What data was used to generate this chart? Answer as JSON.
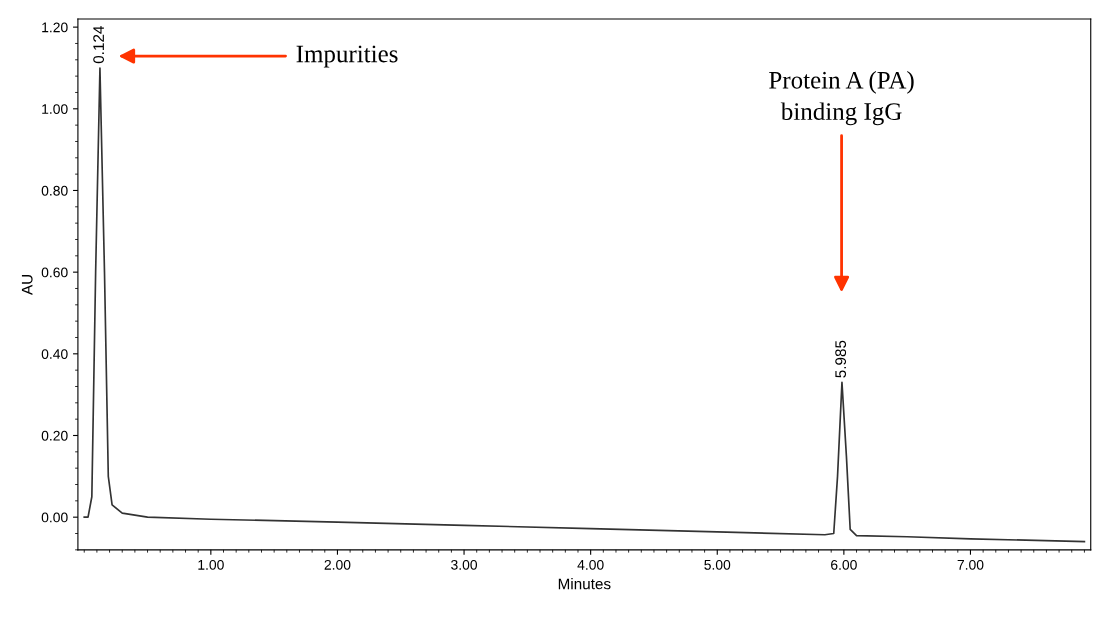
{
  "chart_data": {
    "type": "line",
    "xlabel": "Minutes",
    "ylabel": "AU",
    "x": [
      0,
      0.03,
      0.06,
      0.09,
      0.124,
      0.16,
      0.19,
      0.22,
      0.3,
      0.5,
      1,
      2,
      3,
      4,
      5,
      5.85,
      5.92,
      5.95,
      5.985,
      6.02,
      6.05,
      6.1,
      6.5,
      7,
      7.9
    ],
    "series": [
      {
        "color": "#333333",
        "values": [
          0,
          0.0,
          0.05,
          0.6,
          1.1,
          0.6,
          0.1,
          0.03,
          0.01,
          0.0,
          -0.005,
          -0.012,
          -0.02,
          -0.028,
          -0.036,
          -0.043,
          -0.04,
          0.1,
          0.33,
          0.15,
          -0.03,
          -0.045,
          -0.048,
          -0.053,
          -0.06
        ],
        "name": null
      }
    ],
    "xlim": [
      -0.05,
      7.95
    ],
    "ylim": [
      -0.08,
      1.22
    ],
    "xticks": [
      {
        "value": 1,
        "label": "1.00"
      },
      {
        "value": 2,
        "label": "2.00"
      },
      {
        "value": 3,
        "label": "3.00"
      },
      {
        "value": 4,
        "label": "4.00"
      },
      {
        "value": 5,
        "label": "5.00"
      },
      {
        "value": 6,
        "label": "6.00"
      },
      {
        "value": 7,
        "label": "7.00"
      }
    ],
    "yticks": [
      {
        "value": 0,
        "label": "0.00"
      },
      {
        "value": 0.2,
        "label": "0.20"
      },
      {
        "value": 0.4,
        "label": "0.40"
      },
      {
        "value": 0.6,
        "label": "0.60"
      },
      {
        "value": 0.8,
        "label": "0.80"
      },
      {
        "value": 1.0,
        "label": "1.00"
      },
      {
        "value": 1.2,
        "label": "1.20"
      }
    ],
    "grid": false,
    "legend": false,
    "marker": "none",
    "line_style": "solid",
    "annotations": [
      {
        "text": "0.124",
        "x": 0.124,
        "y": 1.1
      },
      {
        "text": "5.985",
        "x": 5.985,
        "y": 0.33
      },
      "Impurities",
      "Protein A (PA)\nbinding IgG"
    ]
  }
}
